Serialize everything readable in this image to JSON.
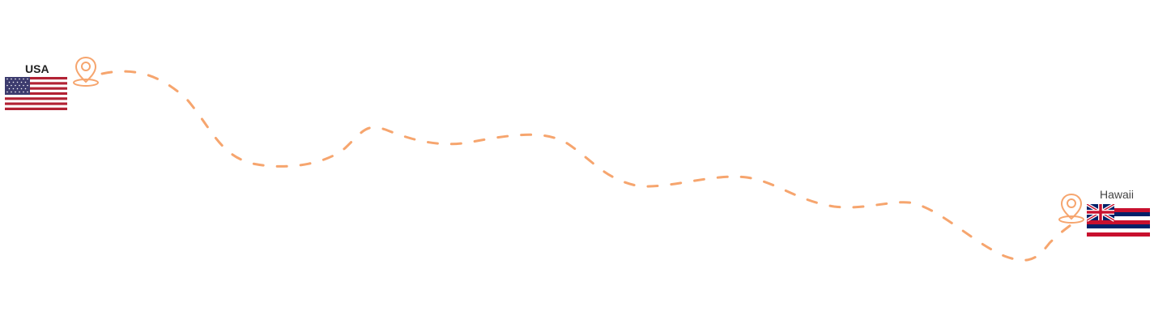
{
  "origin": {
    "label": "USA",
    "flag_icon": "usa-flag-icon",
    "pin_icon": "map-pin-icon"
  },
  "destination": {
    "label": "Hawaii",
    "flag_icon": "hawaii-flag-icon",
    "pin_icon": "map-pin-icon"
  },
  "route": {
    "style": "dashed",
    "color": "#f6a56e"
  },
  "colors": {
    "pin": "#f6a56e",
    "flag_red": "#b22234",
    "flag_blue": "#3c3b6e",
    "hawaii_red": "#c8102e",
    "hawaii_blue": "#012169",
    "white": "#ffffff"
  }
}
